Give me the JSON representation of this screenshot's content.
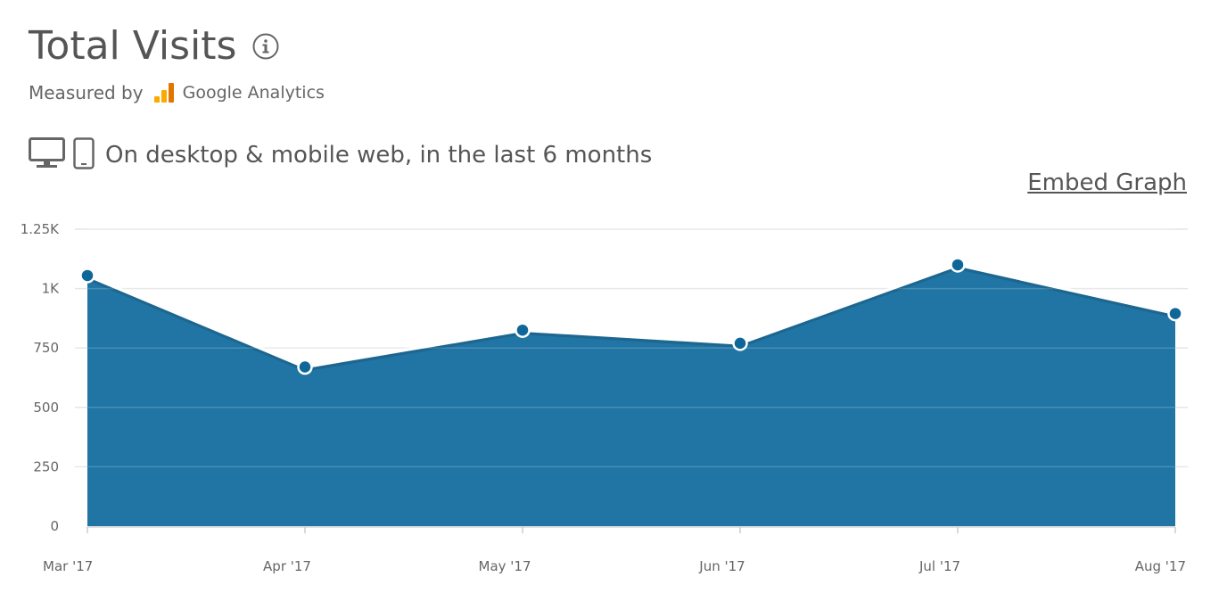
{
  "header": {
    "title": "Total Visits",
    "measured_by": "Measured by",
    "provider": "Google Analytics",
    "device_caption": "On desktop & mobile web, in the last 6 months",
    "embed_label": "Embed Graph"
  },
  "icons": {
    "info": "info-circle-icon",
    "provider_logo": "google-analytics-logo",
    "desktop": "desktop-monitor-icon",
    "mobile": "mobile-phone-icon"
  },
  "colors": {
    "area_fill": "#2075a4",
    "marker": "#0e6798",
    "line_highlight": "#ffffff"
  },
  "chart_data": {
    "type": "area",
    "categories": [
      "Mar '17",
      "Apr '17",
      "May '17",
      "Jun '17",
      "Jul '17",
      "Aug '17"
    ],
    "values": [
      1055,
      670,
      825,
      770,
      1100,
      895
    ],
    "ylim": [
      0,
      1250
    ],
    "yticks": [
      0,
      250,
      500,
      750,
      1000,
      1250
    ],
    "ytick_labels": [
      "0",
      "250",
      "500",
      "750",
      "1K",
      "1.25K"
    ],
    "grid": true,
    "title": "",
    "xlabel": "",
    "ylabel": ""
  }
}
